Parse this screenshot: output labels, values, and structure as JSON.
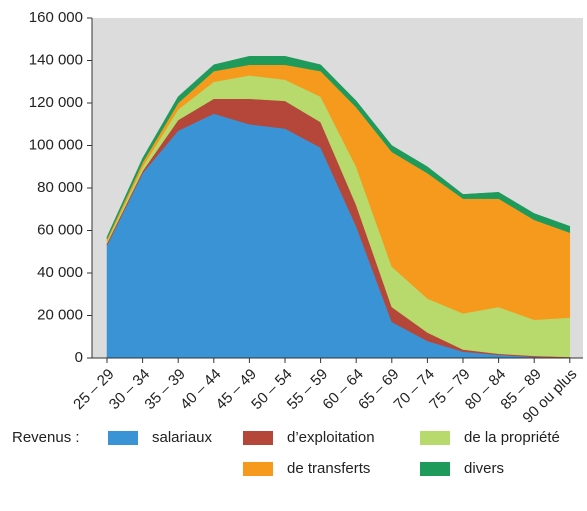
{
  "chart_data": {
    "type": "stacked_area",
    "categories": [
      "25 – 29",
      "30 – 34",
      "35 – 39",
      "40 – 44",
      "45 – 49",
      "50 – 54",
      "55 – 59",
      "60 – 64",
      "65 – 69",
      "70 – 74",
      "75 – 79",
      "80 – 84",
      "85 – 89",
      "90 ou plus"
    ],
    "series": [
      {
        "name": "salariaux",
        "color": "#3a93d5",
        "values": [
          53000,
          87000,
          107000,
          115000,
          110000,
          108000,
          99000,
          62000,
          17000,
          8000,
          3000,
          1500,
          500,
          300
        ]
      },
      {
        "name": "d’exploitation",
        "color": "#b5473a",
        "values": [
          1000,
          1000,
          5000,
          7000,
          12000,
          13000,
          12000,
          10000,
          7000,
          4000,
          1000,
          500,
          500,
          200
        ]
      },
      {
        "name": "de la propriété",
        "color": "#b8d96b",
        "values": [
          1000,
          2000,
          5000,
          8000,
          11000,
          10000,
          12000,
          18000,
          19000,
          16000,
          17000,
          22000,
          17000,
          18500
        ]
      },
      {
        "name": "de transferts",
        "color": "#f59a1c",
        "values": [
          1000,
          2000,
          3000,
          5000,
          5000,
          7000,
          12000,
          28000,
          54000,
          59000,
          54000,
          51000,
          47000,
          40000
        ]
      },
      {
        "name": "divers",
        "color": "#1e9a5a",
        "values": [
          1000,
          2000,
          3000,
          3000,
          4000,
          4000,
          3000,
          3000,
          3000,
          3000,
          2000,
          3000,
          3000,
          3000
        ]
      }
    ],
    "legend_title": "Revenus :",
    "ylim": [
      0,
      160000
    ],
    "yticks": [
      0,
      {
        "value": 20000,
        "label": "20 000"
      },
      {
        "value": 40000,
        "label": "40 000"
      },
      {
        "value": 60000,
        "label": "60 000"
      },
      {
        "value": 80000,
        "label": "80 000"
      },
      {
        "value": 100000,
        "label": "100 000"
      },
      {
        "value": 120000,
        "label": "120 000"
      },
      {
        "value": 140000,
        "label": "140 000"
      },
      {
        "value": 160000,
        "label": "160 000"
      }
    ],
    "plot_background": "#dcdcdc"
  }
}
